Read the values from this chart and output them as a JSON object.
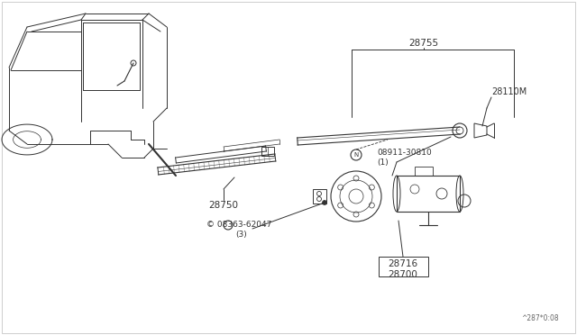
{
  "bg_color": "#ffffff",
  "line_color": "#333333",
  "label_color": "#333333",
  "diagram_code": "^287*0:08",
  "fig_w": 6.4,
  "fig_h": 3.72,
  "border_color": "#cccccc"
}
